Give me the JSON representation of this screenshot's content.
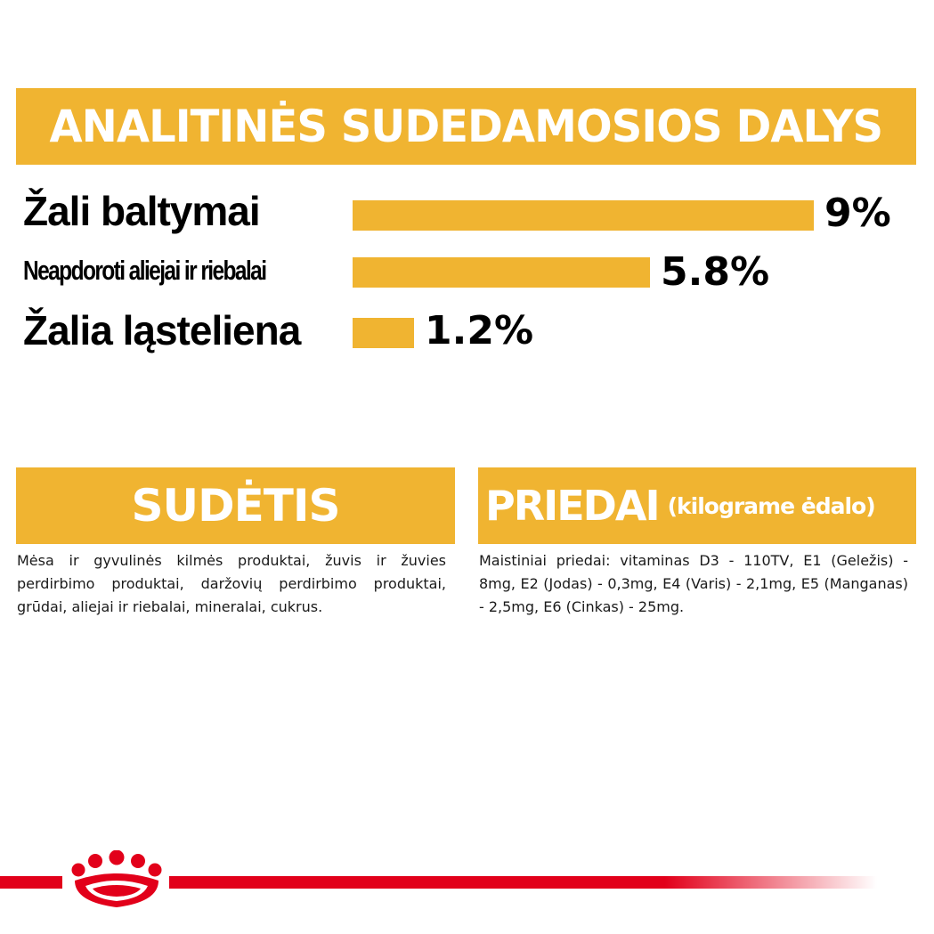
{
  "analytical": {
    "title": "ANALITINĖS SUDEDAMOSIOS DALYS",
    "rows": [
      {
        "label": "Žali baltymai",
        "value_text": "9%",
        "value": 9
      },
      {
        "label": "Neapdoroti aliejai ir riebalai",
        "value_text": "5.8%",
        "value": 5.8
      },
      {
        "label": "Žalia ląsteliena",
        "value_text": "1.2%",
        "value": 1.2
      }
    ]
  },
  "composition": {
    "title": "SUDĖTIS",
    "text": "Mėsa ir gyvulinės kilmės produktai, žuvis ir žuvies perdirbimo produktai, daržovių perdirbimo produktai, grūdai, aliejai ir riebalai, mineralai, cukrus."
  },
  "additives": {
    "title": "PRIEDAI",
    "subtitle": "(kilograme ėdalo)",
    "text": "Maistiniai priedai: vitaminas D3 - 110TV, E1 (Geležis) - 8mg, E2 (Jodas) - 0,3mg, E4 (Varis) - 2,1mg, E5 (Manganas) - 2,5mg, E6 (Cinkas) - 25mg."
  },
  "colors": {
    "accent": "#f0b431",
    "brand_red": "#e2001a"
  },
  "brand": {
    "logo_icon": "royal-canin-crown-icon"
  }
}
